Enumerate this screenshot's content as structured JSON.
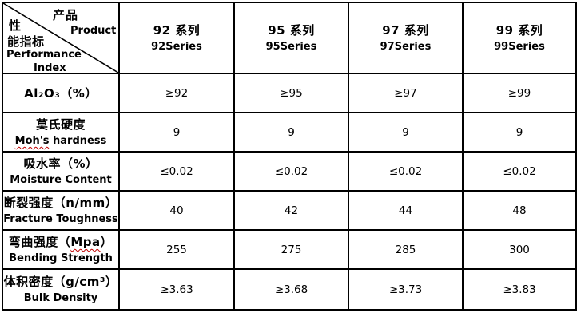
{
  "colors": {
    "background": "#ffffff",
    "grid_border": "#000000",
    "text": "#000000",
    "spellcheck_underline": "#c00000"
  },
  "table": {
    "corner": {
      "product_zh": "产品",
      "product_en": "Product",
      "perf_zh_line1": "性",
      "perf_zh_line2": "能指标",
      "perf_en_line1": "Performance",
      "perf_en_line2": "Index"
    },
    "columns": [
      {
        "zh": "92 系列",
        "en": "92Series"
      },
      {
        "zh": "95 系列",
        "en": "95Series"
      },
      {
        "zh": "97 系列",
        "en": "97Series"
      },
      {
        "zh": "99 系列",
        "en": "99Series"
      }
    ],
    "rows": [
      {
        "label_zh": [
          {
            "t": "Al₂O₃（%）"
          }
        ],
        "label_en": [],
        "values": [
          "≥92",
          "≥95",
          "≥97",
          "≥99"
        ]
      },
      {
        "label_zh": [
          {
            "t": "莫氏硬度"
          }
        ],
        "label_en": [
          {
            "t": "Moh's",
            "wavy": true
          },
          {
            "t": " hardness"
          }
        ],
        "values": [
          "9",
          "9",
          "9",
          "9"
        ]
      },
      {
        "label_zh": [
          {
            "t": "吸水率（%）"
          }
        ],
        "label_en": [
          {
            "t": "Moisture Content"
          }
        ],
        "values": [
          "≤0.02",
          "≤0.02",
          "≤0.02",
          "≤0.02"
        ]
      },
      {
        "label_zh": [
          {
            "t": "断裂强度（n/mm）"
          }
        ],
        "label_en": [
          {
            "t": "Fracture Toughness"
          }
        ],
        "values": [
          "40",
          "42",
          "44",
          "48"
        ]
      },
      {
        "label_zh": [
          {
            "t": "弯曲强度（"
          },
          {
            "t": "Mpa",
            "wavy": true
          },
          {
            "t": "）"
          }
        ],
        "label_en": [
          {
            "t": "Bending Strength"
          }
        ],
        "values": [
          "255",
          "275",
          "285",
          "300"
        ]
      },
      {
        "label_zh": [
          {
            "t": "体积密度（g/cm³）"
          }
        ],
        "label_en": [
          {
            "t": "Bulk Density"
          }
        ],
        "values": [
          "≥3.63",
          "≥3.68",
          "≥3.73",
          "≥3.83"
        ]
      }
    ]
  }
}
